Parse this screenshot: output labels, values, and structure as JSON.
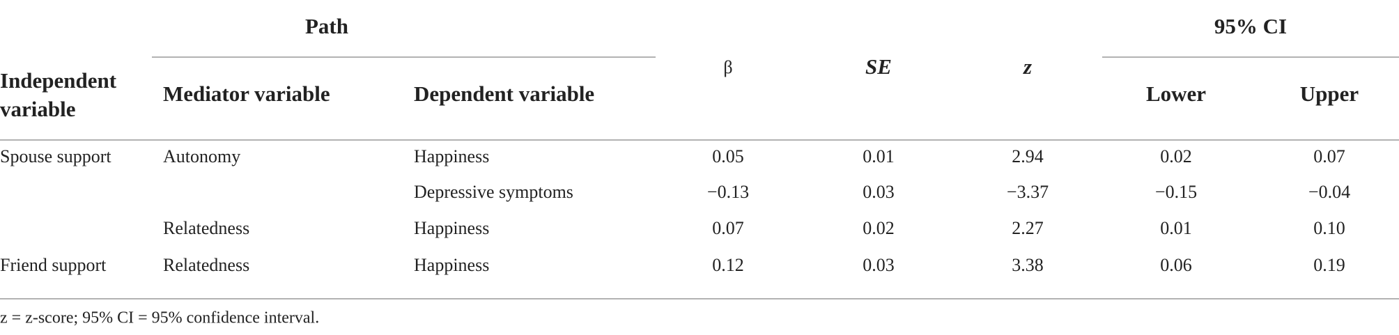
{
  "table": {
    "group_headers": [
      "Path",
      "95% CI"
    ],
    "columns": [
      "Independent variable",
      "Mediator variable",
      "Dependent variable",
      "β",
      "SE",
      "z",
      "Lower",
      "Upper"
    ],
    "rows": [
      [
        "Spouse support",
        "Autonomy",
        "Happiness",
        "0.05",
        "0.01",
        "2.94",
        "0.02",
        "0.07"
      ],
      [
        null,
        null,
        "Depressive symptoms",
        "−0.13",
        "0.03",
        "−3.37",
        "−0.15",
        "−0.04"
      ],
      [
        null,
        "Relatedness",
        "Happiness",
        "0.07",
        "0.02",
        "2.27",
        "0.01",
        "0.10"
      ],
      [
        "Friend support",
        "Relatedness",
        "Happiness",
        "0.12",
        "0.03",
        "3.38",
        "0.06",
        "0.19"
      ]
    ]
  },
  "footnote": "z = z-score; 95% CI = 95% confidence interval."
}
